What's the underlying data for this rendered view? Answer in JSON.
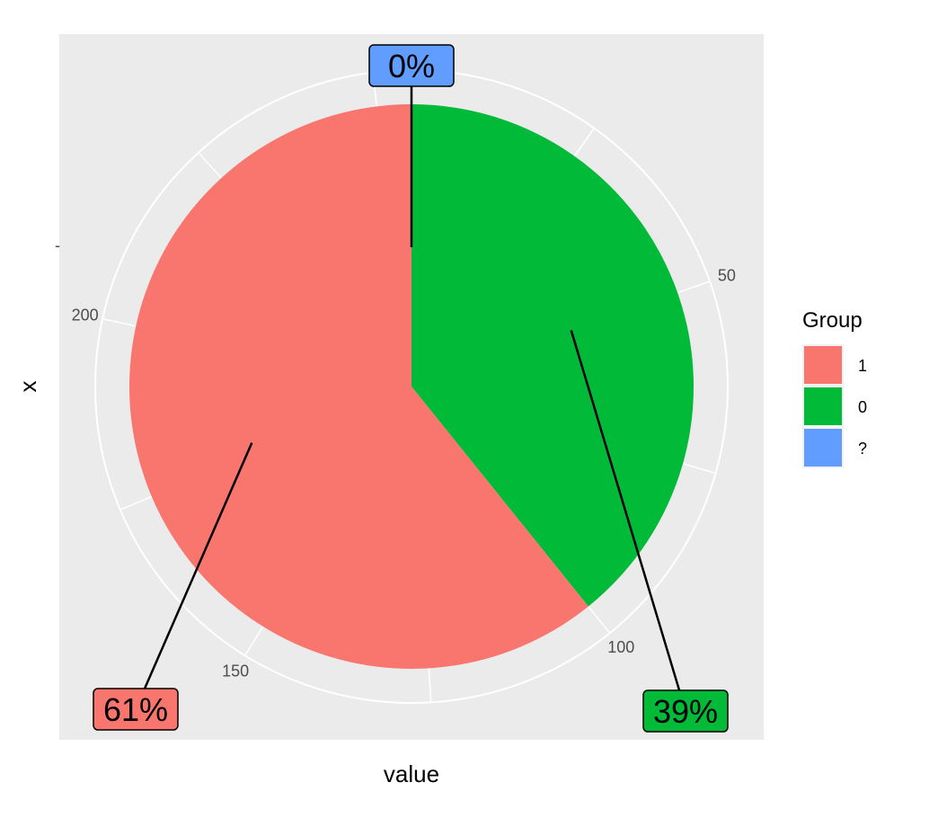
{
  "chart_data": {
    "type": "pie",
    "xlabel": "value",
    "ylabel": "x",
    "y_tick_label": "-",
    "theta_range": [
      0,
      255
    ],
    "theta_ticks": [
      0,
      50,
      100,
      150,
      200
    ],
    "slices": [
      {
        "group": "0",
        "value": 100,
        "color": "#00BA38",
        "label": "39%"
      },
      {
        "group": "1",
        "value": 155,
        "color": "#F8766D",
        "label": "61%"
      },
      {
        "group": "?",
        "value": 0,
        "color": "#619CFF",
        "label": "0%"
      }
    ],
    "legend": {
      "title": "Group",
      "placement": "right",
      "entries": [
        {
          "label": "1",
          "color": "#F8766D"
        },
        {
          "label": "0",
          "color": "#00BA38"
        },
        {
          "label": "?",
          "color": "#619CFF"
        }
      ]
    },
    "panel_background": "#EBEBEB",
    "grid": true
  }
}
